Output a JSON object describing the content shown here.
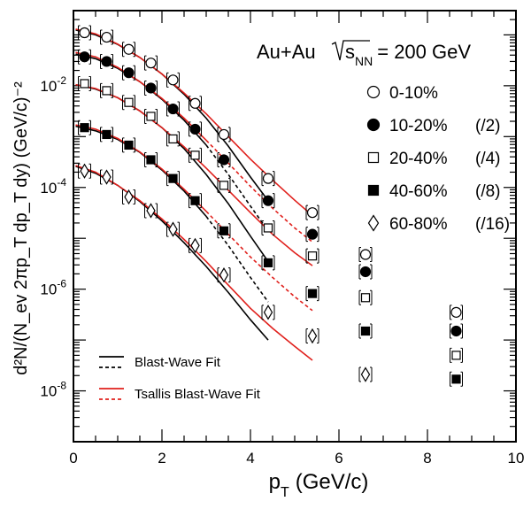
{
  "chart_data": {
    "type": "scatter",
    "xlabel": "p",
    "xlabel_sub": "T",
    "xlabel_unit": "(GeV/c)",
    "ylabel": "d²N/(N_ev 2πp_T dp_T dy) (GeV/c)⁻²",
    "xlim": [
      0,
      10
    ],
    "ylim": [
      1e-09,
      0.3
    ],
    "yscale": "log",
    "x_ticks": [
      "0",
      "2",
      "4",
      "6",
      "8",
      "10"
    ],
    "y_tick_values": [
      -8,
      -6,
      -4,
      -2
    ],
    "y_tick_base": "10",
    "system_label": {
      "collision": "Au+Au",
      "sqrt": "s",
      "sub": "NN",
      "energy": "= 200 GeV"
    },
    "series": [
      {
        "name": "0-10%",
        "marker": "open-circle",
        "x": [
          0.25,
          0.75,
          1.25,
          1.75,
          2.25,
          2.75,
          3.4,
          4.4,
          5.4,
          6.6,
          8.65
        ],
        "y": [
          0.11,
          0.09,
          0.052,
          0.028,
          0.013,
          0.0045,
          0.0011,
          0.00015,
          3.2e-05,
          4.8e-06,
          3.5e-07
        ]
      },
      {
        "name": "10-20%",
        "scale": "(/2)",
        "marker": "filled-circle",
        "x": [
          0.25,
          0.75,
          1.25,
          1.75,
          2.25,
          2.75,
          3.4,
          4.4,
          5.4,
          6.6,
          8.65
        ],
        "y": [
          0.037,
          0.03,
          0.018,
          0.009,
          0.0035,
          0.0014,
          0.00035,
          5.5e-05,
          1.2e-05,
          2.2e-06,
          1.5e-07
        ]
      },
      {
        "name": "20-40%",
        "scale": "(/4)",
        "marker": "open-square",
        "x": [
          0.25,
          0.75,
          1.25,
          1.75,
          2.25,
          2.75,
          3.4,
          4.4,
          5.4,
          6.6,
          8.65
        ],
        "y": [
          0.011,
          0.008,
          0.0047,
          0.0025,
          0.0009,
          0.00043,
          0.00011,
          1.6e-05,
          4.5e-06,
          6.8e-07,
          5e-08
        ]
      },
      {
        "name": "40-60%",
        "scale": "(/8)",
        "marker": "filled-square",
        "x": [
          0.25,
          0.75,
          1.25,
          1.75,
          2.25,
          2.75,
          3.4,
          4.4,
          5.4,
          6.6,
          8.65
        ],
        "y": [
          0.0015,
          0.0011,
          0.00068,
          0.00035,
          0.00015,
          5.5e-05,
          1.4e-05,
          3.3e-06,
          8.2e-07,
          1.5e-07,
          1.7e-08
        ]
      },
      {
        "name": "60-80%",
        "scale": "(/16)",
        "marker": "open-diamond",
        "x": [
          0.25,
          0.75,
          1.25,
          1.75,
          2.25,
          2.75,
          3.4,
          4.4,
          5.4,
          6.6
        ],
        "y": [
          0.00021,
          0.00016,
          6.5e-05,
          3.5e-05,
          1.5e-05,
          7.2e-06,
          1.9e-06,
          3.5e-07,
          1.2e-07,
          2.1e-08
        ]
      }
    ],
    "fits": [
      {
        "name": "Blast-Wave Fit",
        "color": "#000000",
        "curves": [
          {
            "series": "0-10%",
            "solid_to": 4.4,
            "x": [
              0.05,
              0.5,
              1.0,
              1.5,
              2.0,
              2.5,
              3.0,
              3.5,
              4.0,
              4.4
            ],
            "y": [
              0.125,
              0.1,
              0.065,
              0.036,
              0.017,
              0.0068,
              0.0023,
              0.00065,
              0.00016,
              5.5e-05
            ]
          },
          {
            "series": "10-20%",
            "solid_to": 3.0,
            "x": [
              0.05,
              0.5,
              1.0,
              1.5,
              2.0,
              2.5,
              3.0,
              3.5,
              4.0,
              4.4
            ],
            "y": [
              0.042,
              0.034,
              0.022,
              0.012,
              0.0054,
              0.0021,
              0.00068,
              0.00018,
              4.3e-05,
              1.4e-05
            ]
          },
          {
            "series": "20-40%",
            "solid_to": 4.4,
            "x": [
              0.05,
              0.5,
              1.0,
              1.5,
              2.0,
              2.5,
              3.0,
              3.5,
              4.0,
              4.4
            ],
            "y": [
              0.0105,
              0.0086,
              0.0058,
              0.0032,
              0.0015,
              0.00058,
              0.00018,
              4.8e-05,
              1.1e-05,
              3.5e-06
            ]
          },
          {
            "series": "40-60%",
            "solid_to": 3.0,
            "x": [
              0.05,
              0.5,
              1.0,
              1.5,
              2.0,
              2.5,
              3.0,
              3.5,
              4.0,
              4.4
            ],
            "y": [
              0.0016,
              0.0013,
              0.00088,
              0.00049,
              0.00022,
              8.5e-05,
              2.7e-05,
              7.2e-06,
              1.7e-06,
              5.6e-07
            ]
          },
          {
            "series": "60-80%",
            "solid_to": 4.4,
            "x": [
              0.05,
              0.5,
              1.0,
              1.5,
              2.0,
              2.5,
              3.0,
              3.5,
              4.0,
              4.4
            ],
            "y": [
              0.00026,
              0.00019,
              0.00011,
              5.3e-05,
              2.2e-05,
              8.2e-06,
              2.8e-06,
              8.6e-07,
              2.5e-07,
              1e-07
            ]
          }
        ]
      },
      {
        "name": "Tsallis Blast-Wave Fit",
        "color": "#e0201c",
        "curves": [
          {
            "series": "0-10%",
            "solid_to": 5.4,
            "x": [
              0.05,
              0.5,
              1.0,
              1.5,
              2.0,
              2.5,
              3.0,
              3.5,
              4.0,
              4.5,
              5.0,
              5.4
            ],
            "y": [
              0.13,
              0.105,
              0.066,
              0.036,
              0.017,
              0.0072,
              0.0028,
              0.001,
              0.00036,
              0.00014,
              5.6e-05,
              2.8e-05
            ]
          },
          {
            "series": "10-20%",
            "solid_to": 3.0,
            "x": [
              0.05,
              0.5,
              1.0,
              1.5,
              2.0,
              2.5,
              3.0,
              3.5,
              4.0,
              4.5,
              5.0,
              5.4
            ],
            "y": [
              0.045,
              0.037,
              0.023,
              0.012,
              0.0056,
              0.0023,
              0.00085,
              0.0003,
              0.000105,
              3.9e-05,
              1.6e-05,
              8.5e-06
            ]
          },
          {
            "series": "20-40%",
            "solid_to": 5.4,
            "x": [
              0.05,
              0.5,
              1.0,
              1.5,
              2.0,
              2.5,
              3.0,
              3.5,
              4.0,
              4.5,
              5.0,
              5.4
            ],
            "y": [
              0.0105,
              0.0088,
              0.0058,
              0.0032,
              0.0015,
              0.00063,
              0.00024,
              8.8e-05,
              3.2e-05,
              1.2e-05,
              5.2e-06,
              2.9e-06
            ]
          },
          {
            "series": "40-60%",
            "solid_to": 3.0,
            "x": [
              0.05,
              0.5,
              1.0,
              1.5,
              2.0,
              2.5,
              3.0,
              3.5,
              4.0,
              4.5,
              5.0,
              5.4
            ],
            "y": [
              0.0017,
              0.0014,
              0.00092,
              0.0005,
              0.00023,
              9.2e-05,
              3.4e-05,
              1.2e-05,
              4.3e-06,
              1.7e-06,
              7.1e-07,
              3.8e-07
            ]
          },
          {
            "series": "60-80%",
            "solid_to": 5.4,
            "x": [
              0.05,
              0.5,
              1.0,
              1.5,
              2.0,
              2.5,
              3.0,
              3.5,
              4.0,
              4.5,
              5.0,
              5.4
            ],
            "y": [
              0.00027,
              0.0002,
              0.00011,
              5.5e-05,
              2.4e-05,
              9.5e-06,
              3.5e-06,
              1.2e-06,
              4.2e-07,
              1.7e-07,
              7.5e-08,
              4e-08
            ]
          }
        ]
      }
    ],
    "legend_position": "top-right",
    "fit_legend_position": "bottom-left",
    "grid": false
  }
}
